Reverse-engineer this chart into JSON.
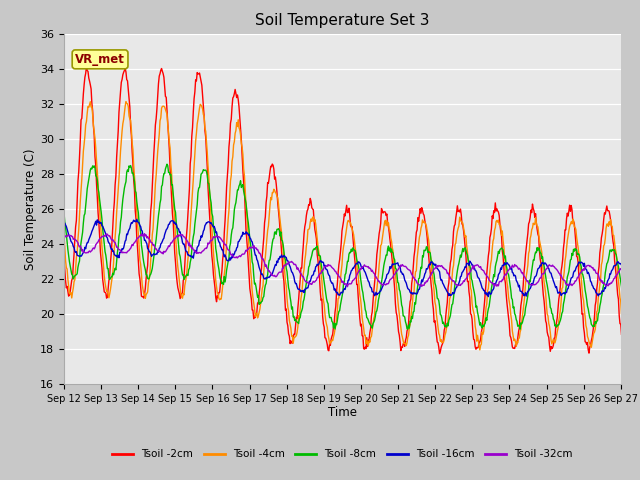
{
  "title": "Soil Temperature Set 3",
  "xlabel": "Time",
  "ylabel": "Soil Temperature (C)",
  "ylim": [
    16,
    36
  ],
  "yticks": [
    16,
    18,
    20,
    22,
    24,
    26,
    28,
    30,
    32,
    34,
    36
  ],
  "fig_bg_color": "#c8c8c8",
  "plot_bg_color": "#e8e8e8",
  "grid_color": "#ffffff",
  "annotation_text": "VR_met",
  "annotation_bg": "#ffff99",
  "annotation_border": "#999900",
  "lines": [
    {
      "label": "Tsoil -2cm",
      "color": "#ff0000"
    },
    {
      "label": "Tsoil -4cm",
      "color": "#ff8c00"
    },
    {
      "label": "Tsoil -8cm",
      "color": "#00bb00"
    },
    {
      "label": "Tsoil -16cm",
      "color": "#0000cc"
    },
    {
      "label": "Tsoil -32cm",
      "color": "#9900cc"
    }
  ],
  "xtick_labels": [
    "Sep 12",
    "Sep 13",
    "Sep 14",
    "Sep 15",
    "Sep 16",
    "Sep 17",
    "Sep 18",
    "Sep 19",
    "Sep 20",
    "Sep 21",
    "Sep 22",
    "Sep 23",
    "Sep 24",
    "Sep 25",
    "Sep 26",
    "Sep 27"
  ],
  "num_days": 16,
  "points_per_day": 48
}
